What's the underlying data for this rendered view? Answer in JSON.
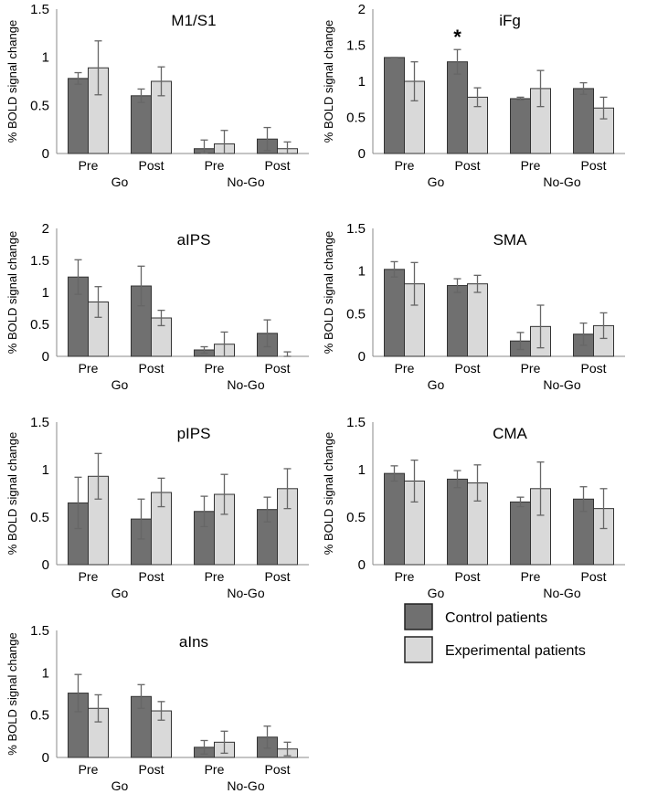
{
  "chart_data": {
    "type": "bar",
    "ylabel": "% BOLD signal change",
    "group_labels": [
      "Go",
      "No-Go"
    ],
    "categories": [
      "Pre",
      "Post",
      "Pre",
      "Post"
    ],
    "colors": {
      "control": "#707070",
      "experimental": "#d9d9d9",
      "error": "#666666"
    },
    "legend": {
      "placement": "bottom-right",
      "entries": [
        "Control patients",
        "Experimental patients"
      ]
    },
    "panels": [
      {
        "title": "M1/S1",
        "ylim": [
          0,
          1.5
        ],
        "ticks": [
          "0",
          "0.5",
          "1",
          "1.5"
        ],
        "tickvals": [
          0,
          0.5,
          1,
          1.5
        ],
        "control": [
          0.78,
          0.6,
          0.05,
          0.15
        ],
        "control_err": [
          0.06,
          0.07,
          0.09,
          0.12
        ],
        "experimental": [
          0.89,
          0.75,
          0.1,
          0.05
        ],
        "experimental_err": [
          0.28,
          0.15,
          0.14,
          0.07
        ]
      },
      {
        "title": "iFg",
        "ylim": [
          0,
          2
        ],
        "ticks": [
          "0",
          "0.5",
          "1",
          "1.5",
          "2"
        ],
        "tickvals": [
          0,
          0.5,
          1,
          1.5,
          2
        ],
        "control": [
          1.33,
          1.27,
          0.76,
          0.9
        ],
        "control_err": [
          0.0,
          0.17,
          0.02,
          0.08
        ],
        "experimental": [
          1.0,
          0.78,
          0.9,
          0.63
        ],
        "experimental_err": [
          0.27,
          0.13,
          0.25,
          0.15
        ],
        "annotation": "*"
      },
      {
        "title": "aIPS",
        "ylim": [
          0,
          2
        ],
        "ticks": [
          "0",
          "0.5",
          "1",
          "1.5",
          "2"
        ],
        "tickvals": [
          0,
          0.5,
          1,
          1.5,
          2
        ],
        "control": [
          1.24,
          1.1,
          0.1,
          0.36
        ],
        "control_err": [
          0.27,
          0.31,
          0.05,
          0.21
        ],
        "experimental": [
          0.85,
          0.6,
          0.19,
          0.0
        ],
        "experimental_err": [
          0.24,
          0.12,
          0.19,
          0.07
        ]
      },
      {
        "title": "SMA",
        "ylim": [
          0,
          1.5
        ],
        "ticks": [
          "0",
          "0.5",
          "1",
          "1.5"
        ],
        "tickvals": [
          0,
          0.5,
          1,
          1.5
        ],
        "control": [
          1.02,
          0.83,
          0.18,
          0.26
        ],
        "control_err": [
          0.09,
          0.08,
          0.1,
          0.13
        ],
        "experimental": [
          0.85,
          0.85,
          0.35,
          0.36
        ],
        "experimental_err": [
          0.25,
          0.1,
          0.25,
          0.15
        ]
      },
      {
        "title": "pIPS",
        "ylim": [
          0,
          1.5
        ],
        "ticks": [
          "0",
          "0.5",
          "1",
          "1.5"
        ],
        "tickvals": [
          0,
          0.5,
          1,
          1.5
        ],
        "control": [
          0.65,
          0.48,
          0.56,
          0.58
        ],
        "control_err": [
          0.27,
          0.21,
          0.16,
          0.13
        ],
        "experimental": [
          0.93,
          0.76,
          0.74,
          0.8
        ],
        "experimental_err": [
          0.24,
          0.15,
          0.21,
          0.21
        ]
      },
      {
        "title": "CMA",
        "ylim": [
          0,
          1.5
        ],
        "ticks": [
          "0",
          "0.5",
          "1",
          "1.5"
        ],
        "tickvals": [
          0,
          0.5,
          1,
          1.5
        ],
        "control": [
          0.96,
          0.9,
          0.66,
          0.69
        ],
        "control_err": [
          0.08,
          0.09,
          0.05,
          0.13
        ],
        "experimental": [
          0.88,
          0.86,
          0.8,
          0.59
        ],
        "experimental_err": [
          0.22,
          0.19,
          0.28,
          0.21
        ]
      },
      {
        "title": "aIns",
        "ylim": [
          0,
          1.5
        ],
        "ticks": [
          "0",
          "0.5",
          "1",
          "1.5"
        ],
        "tickvals": [
          0,
          0.5,
          1,
          1.5
        ],
        "control": [
          0.76,
          0.72,
          0.12,
          0.24
        ],
        "control_err": [
          0.22,
          0.14,
          0.08,
          0.13
        ],
        "experimental": [
          0.58,
          0.55,
          0.18,
          0.1
        ],
        "experimental_err": [
          0.16,
          0.11,
          0.13,
          0.08
        ]
      }
    ]
  }
}
